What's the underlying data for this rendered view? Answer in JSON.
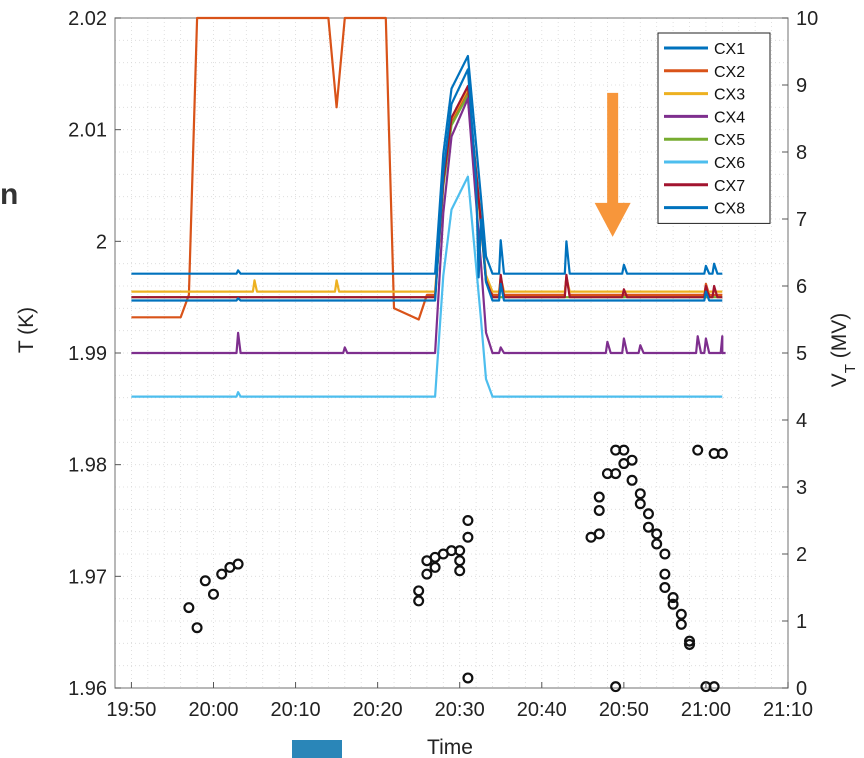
{
  "page": {
    "edge_fragment": "n"
  },
  "chart_data": {
    "type": "line",
    "xlabel": "Time",
    "ylabel_left": "T (K)",
    "ylabel_right": "V_T (MV)",
    "x_unit": "minutes",
    "xlim": [
      "19:48",
      "21:10"
    ],
    "ylim_left": [
      1.96,
      2.02
    ],
    "ylim_right": [
      0,
      10
    ],
    "x_ticks": [
      "19:50",
      "20:00",
      "20:10",
      "20:20",
      "20:30",
      "20:40",
      "20:50",
      "21:00",
      "21:10"
    ],
    "y_ticks_left": [
      "1.96",
      "1.97",
      "1.98",
      "1.99",
      "2",
      "2.01",
      "2.02"
    ],
    "y_ticks_right": [
      "0",
      "1",
      "2",
      "3",
      "4",
      "5",
      "6",
      "7",
      "8",
      "9",
      "10"
    ],
    "grid": true,
    "legend_position": "top-right",
    "colors": {
      "CX1": "#0072BD",
      "CX2": "#D95319",
      "CX3": "#EDB120",
      "CX4": "#7E2F8E",
      "CX5": "#77AC30",
      "CX6": "#4DBEEE",
      "CX7": "#A2142F",
      "CX8": "#0072BD",
      "vt_markers": "#111111",
      "arrow": "#F7963B"
    },
    "series": [
      {
        "name": "CX1",
        "base": 1.9947,
        "peak": 2.0154,
        "spikes": [
          [
            "20:03",
            1.9949
          ],
          [
            "20:32",
            2.0055
          ],
          [
            "20:35",
            1.9962
          ],
          [
            "21:00",
            1.9955
          ]
        ]
      },
      {
        "name": "CX2",
        "base": 1.9952,
        "points": [
          [
            "19:50",
            1.9932
          ],
          [
            "19:56",
            1.9932
          ],
          [
            "19:57",
            1.9952
          ],
          [
            "19:58",
            2.025
          ],
          [
            "20:14",
            2.025
          ],
          [
            "20:15",
            2.012
          ],
          [
            "20:16",
            2.025
          ],
          [
            "20:21",
            2.025
          ],
          [
            "20:22",
            1.994
          ],
          [
            "20:25",
            1.993
          ],
          [
            "20:26",
            1.9952
          ]
        ],
        "peak": 2.0135,
        "spikes": [
          [
            "20:35",
            1.9965
          ],
          [
            "20:43",
            1.9968
          ],
          [
            "21:00",
            1.9962
          ]
        ]
      },
      {
        "name": "CX3",
        "base": 1.9955,
        "peak": 2.0137,
        "spikes": [
          [
            "20:05",
            1.9965
          ],
          [
            "20:15",
            1.9965
          ],
          [
            "20:35",
            1.9968
          ],
          [
            "20:43",
            1.9968
          ]
        ]
      },
      {
        "name": "CX4",
        "base": 1.99,
        "peak": 2.0128,
        "spikes": [
          [
            "20:03",
            1.9918
          ],
          [
            "20:16",
            1.9905
          ],
          [
            "20:35",
            1.9905
          ],
          [
            "20:48",
            1.991
          ],
          [
            "20:50",
            1.9913
          ],
          [
            "20:52",
            1.9907
          ],
          [
            "20:59",
            1.9915
          ],
          [
            "21:00",
            1.9913
          ],
          [
            "21:02",
            1.9915
          ]
        ]
      },
      {
        "name": "CX5",
        "base": 1.995,
        "peak": 2.0131,
        "spikes": []
      },
      {
        "name": "CX6",
        "base": 1.9861,
        "peak": 2.0058,
        "spikes": [
          [
            "20:03",
            1.9865
          ]
        ]
      },
      {
        "name": "CX7",
        "base": 1.995,
        "peak": 2.0139,
        "spikes": [
          [
            "20:35",
            1.997
          ],
          [
            "20:43",
            1.997
          ],
          [
            "20:50",
            1.9957
          ],
          [
            "21:00",
            1.996
          ],
          [
            "21:01",
            1.996
          ]
        ]
      },
      {
        "name": "CX8",
        "base": 1.9971,
        "peak": 2.0166,
        "spikes": [
          [
            "20:03",
            1.9974
          ],
          [
            "20:35",
            2.0001
          ],
          [
            "20:43",
            2.0
          ],
          [
            "20:50",
            1.9979
          ],
          [
            "21:00",
            1.9978
          ],
          [
            "21:01",
            1.998
          ]
        ]
      }
    ],
    "rise_window": {
      "start": "20:27",
      "peak": "20:31",
      "end": "20:32"
    },
    "vt_points": [
      [
        "19:57",
        1.2
      ],
      [
        "19:58",
        0.9
      ],
      [
        "19:59",
        1.6
      ],
      [
        "20:00",
        1.4
      ],
      [
        "20:01",
        1.7
      ],
      [
        "20:02",
        1.8
      ],
      [
        "20:03",
        1.85
      ],
      [
        "20:25",
        1.3
      ],
      [
        "20:25",
        1.45
      ],
      [
        "20:26",
        1.7
      ],
      [
        "20:26",
        1.9
      ],
      [
        "20:27",
        1.8
      ],
      [
        "20:27",
        1.95
      ],
      [
        "20:28",
        2.0
      ],
      [
        "20:29",
        2.05
      ],
      [
        "20:30",
        1.9
      ],
      [
        "20:30",
        1.75
      ],
      [
        "20:30",
        2.05
      ],
      [
        "20:31",
        2.25
      ],
      [
        "20:31",
        2.5
      ],
      [
        "20:31",
        0.15
      ],
      [
        "20:46",
        2.25
      ],
      [
        "20:47",
        2.3
      ],
      [
        "20:47",
        2.65
      ],
      [
        "20:47",
        2.85
      ],
      [
        "20:48",
        3.2
      ],
      [
        "20:49",
        3.2
      ],
      [
        "20:49",
        3.55
      ],
      [
        "20:50",
        3.55
      ],
      [
        "20:50",
        3.35
      ],
      [
        "20:51",
        3.4
      ],
      [
        "20:51",
        3.1
      ],
      [
        "20:52",
        2.9
      ],
      [
        "20:52",
        2.75
      ],
      [
        "20:53",
        2.6
      ],
      [
        "20:53",
        2.4
      ],
      [
        "20:54",
        2.3
      ],
      [
        "20:54",
        2.15
      ],
      [
        "20:55",
        2.0
      ],
      [
        "20:55",
        1.7
      ],
      [
        "20:55",
        1.5
      ],
      [
        "20:56",
        1.35
      ],
      [
        "20:56",
        1.25
      ],
      [
        "20:57",
        1.1
      ],
      [
        "20:57",
        0.95
      ],
      [
        "20:58",
        0.7
      ],
      [
        "20:58",
        0.65
      ],
      [
        "20:59",
        3.55
      ],
      [
        "21:00",
        0.02
      ],
      [
        "21:01",
        0.02
      ],
      [
        "21:01",
        3.5
      ],
      [
        "21:02",
        3.5
      ],
      [
        "20:49",
        0.02
      ]
    ],
    "annotation": {
      "type": "arrow",
      "direction": "down",
      "at": "20:49",
      "from": 2.0133,
      "to": 2.0004
    }
  }
}
